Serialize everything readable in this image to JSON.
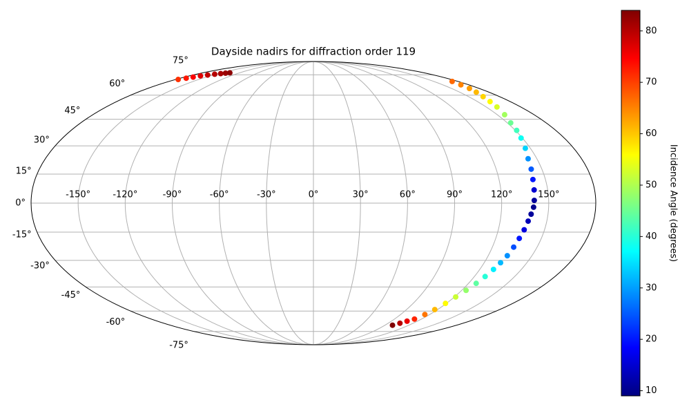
{
  "chart_data": {
    "type": "scatter",
    "projection": "mollweide",
    "title": "Dayside nadirs for diffraction order 119",
    "grid": true,
    "xlim": [
      -180,
      180
    ],
    "ylim": [
      -90,
      90
    ],
    "xticks": [
      {
        "value": -150,
        "label": "-150°"
      },
      {
        "value": -120,
        "label": "-120°"
      },
      {
        "value": -90,
        "label": "-90°"
      },
      {
        "value": -60,
        "label": "-60°"
      },
      {
        "value": -30,
        "label": "-30°"
      },
      {
        "value": 0,
        "label": "0°"
      },
      {
        "value": 30,
        "label": "30°"
      },
      {
        "value": 60,
        "label": "60°"
      },
      {
        "value": 90,
        "label": "90°"
      },
      {
        "value": 120,
        "label": "120°"
      },
      {
        "value": 150,
        "label": "150°"
      }
    ],
    "yticks": [
      {
        "value": -75,
        "label": "-75°"
      },
      {
        "value": -60,
        "label": "-60°"
      },
      {
        "value": -45,
        "label": "-45°"
      },
      {
        "value": -30,
        "label": "-30°"
      },
      {
        "value": -15,
        "label": "-15°"
      },
      {
        "value": 0,
        "label": "0°"
      },
      {
        "value": 15,
        "label": "15°"
      },
      {
        "value": 30,
        "label": "30°"
      },
      {
        "value": 45,
        "label": "45°"
      },
      {
        "value": 60,
        "label": "60°"
      },
      {
        "value": 75,
        "label": "75°"
      }
    ],
    "x": [
      -176.7,
      -172,
      -168,
      -164,
      -158,
      -152,
      -146,
      -141,
      -136,
      172.8,
      171,
      169.5,
      167,
      164,
      161.5,
      159.3,
      156,
      152.6,
      151,
      149,
      146.5,
      144.1,
      143,
      141.9,
      141.3,
      140.8,
      140.4,
      139.2,
      138,
      136.8,
      135.5,
      134.3,
      133.1,
      131.5,
      129.9,
      128,
      125.9,
      123.5,
      121.1,
      119.2,
      117.3,
      115,
      112.2,
      108,
      104,
      99.4
    ],
    "y": [
      71.2,
      72.2,
      73.1,
      74.1,
      74.8,
      75.5,
      76.0,
      76.4,
      76.7,
      69.7,
      67.2,
      64.6,
      62,
      59,
      55.8,
      52.4,
      47.7,
      42.9,
      38.6,
      34.3,
      28.7,
      23.1,
      17.6,
      12.2,
      6.8,
      1.4,
      -2.1,
      -5.7,
      -9.3,
      -13.8,
      -18.3,
      -22.9,
      -27.5,
      -31.3,
      -35,
      -39,
      -42.9,
      -47,
      -51,
      -55,
      -59,
      -62.3,
      -65.5,
      -67,
      -68.5,
      -70
    ],
    "values": [
      71,
      73,
      75,
      77,
      79,
      80,
      81,
      82,
      83,
      67,
      65,
      63,
      61,
      59,
      56,
      53,
      49,
      45,
      42,
      38,
      34,
      29,
      25,
      20,
      15,
      11,
      10,
      11,
      13,
      16,
      20,
      24,
      29,
      32,
      36,
      40,
      44,
      48,
      52,
      56,
      61,
      66,
      72,
      76,
      80,
      84
    ],
    "colorbar": {
      "label": "Incidence Angle (degrees)",
      "cmap": "jet",
      "lim": [
        9,
        84
      ],
      "ticks": [
        10,
        20,
        30,
        40,
        50,
        60,
        70,
        80
      ]
    }
  }
}
